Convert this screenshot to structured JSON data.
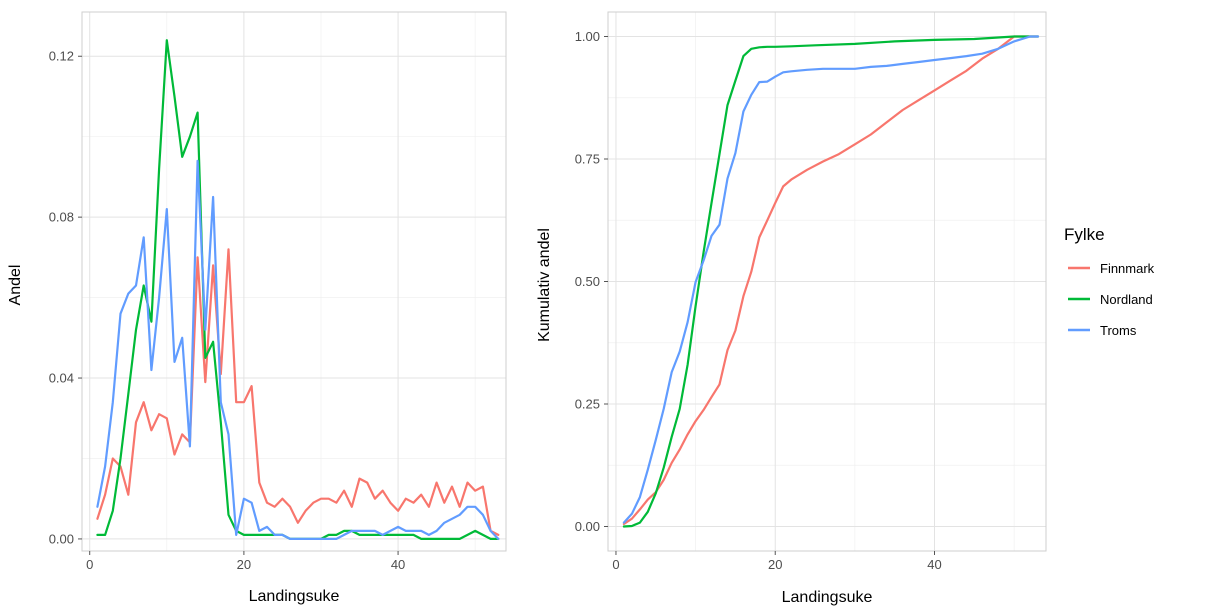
{
  "legend": {
    "title": "Fylke",
    "position": "right",
    "entries": [
      {
        "label": "Finnmark",
        "color": "#F8766D"
      },
      {
        "label": "Nordland",
        "color": "#00BA38"
      },
      {
        "label": "Troms",
        "color": "#619CFF"
      }
    ]
  },
  "chart_data": [
    {
      "type": "line",
      "xlabel": "Landingsuke",
      "ylabel": "Andel",
      "xlim": [
        -1,
        54
      ],
      "ylim": [
        -0.003,
        0.131
      ],
      "xticks": [
        0,
        20,
        40
      ],
      "xtick_labels": [
        "0",
        "20",
        "40"
      ],
      "yticks": [
        0,
        0.04,
        0.08,
        0.12
      ],
      "ytick_labels": [
        "0.00",
        "0.04",
        "0.08",
        "0.12"
      ],
      "grid": true,
      "series": [
        {
          "name": "Finnmark",
          "color": "#F8766D",
          "x": [
            1,
            2,
            3,
            4,
            5,
            6,
            7,
            8,
            9,
            10,
            11,
            12,
            13,
            14,
            15,
            16,
            17,
            18,
            19,
            20,
            21,
            22,
            23,
            24,
            25,
            26,
            27,
            28,
            29,
            30,
            31,
            32,
            33,
            34,
            35,
            36,
            37,
            38,
            39,
            40,
            41,
            42,
            43,
            44,
            45,
            46,
            47,
            48,
            49,
            50,
            51,
            52,
            53
          ],
          "y": [
            0.005,
            0.011,
            0.02,
            0.018,
            0.011,
            0.029,
            0.034,
            0.027,
            0.031,
            0.03,
            0.021,
            0.026,
            0.024,
            0.07,
            0.039,
            0.068,
            0.041,
            0.072,
            0.034,
            0.034,
            0.038,
            0.014,
            0.009,
            0.008,
            0.01,
            0.008,
            0.004,
            0.007,
            0.009,
            0.01,
            0.01,
            0.009,
            0.012,
            0.008,
            0.015,
            0.014,
            0.01,
            0.012,
            0.009,
            0.007,
            0.01,
            0.009,
            0.011,
            0.008,
            0.014,
            0.009,
            0.013,
            0.008,
            0.014,
            0.012,
            0.013,
            0.002,
            0.001
          ]
        },
        {
          "name": "Nordland",
          "color": "#00BA38",
          "x": [
            1,
            2,
            3,
            4,
            5,
            6,
            7,
            8,
            9,
            10,
            11,
            12,
            13,
            14,
            15,
            16,
            17,
            18,
            19,
            20,
            21,
            22,
            23,
            24,
            25,
            26,
            27,
            28,
            29,
            30,
            31,
            32,
            33,
            34,
            35,
            36,
            37,
            38,
            39,
            40,
            41,
            42,
            43,
            44,
            45,
            46,
            47,
            48,
            49,
            50,
            51,
            52,
            53
          ],
          "y": [
            0.001,
            0.001,
            0.007,
            0.02,
            0.036,
            0.052,
            0.063,
            0.054,
            0.092,
            0.124,
            0.11,
            0.095,
            0.1,
            0.106,
            0.045,
            0.049,
            0.029,
            0.006,
            0.002,
            0.001,
            0.001,
            0.001,
            0.001,
            0.001,
            0.001,
            0.0,
            0.0,
            0.0,
            0.0,
            0.0,
            0.001,
            0.001,
            0.002,
            0.002,
            0.001,
            0.001,
            0.001,
            0.001,
            0.001,
            0.001,
            0.001,
            0.001,
            0.0,
            0.0,
            0.0,
            0.0,
            0.0,
            0.0,
            0.001,
            0.002,
            0.001,
            0.0,
            0.0
          ]
        },
        {
          "name": "Troms",
          "color": "#619CFF",
          "x": [
            1,
            2,
            3,
            4,
            5,
            6,
            7,
            8,
            9,
            10,
            11,
            12,
            13,
            14,
            15,
            16,
            17,
            18,
            19,
            20,
            21,
            22,
            23,
            24,
            25,
            26,
            27,
            28,
            29,
            30,
            31,
            32,
            33,
            34,
            35,
            36,
            37,
            38,
            39,
            40,
            41,
            42,
            43,
            44,
            45,
            46,
            47,
            48,
            49,
            50,
            51,
            52,
            53
          ],
          "y": [
            0.008,
            0.018,
            0.034,
            0.056,
            0.061,
            0.063,
            0.075,
            0.042,
            0.06,
            0.082,
            0.044,
            0.05,
            0.023,
            0.094,
            0.052,
            0.085,
            0.034,
            0.026,
            0.001,
            0.01,
            0.009,
            0.002,
            0.003,
            0.001,
            0.001,
            0.0,
            0.0,
            0.0,
            0.0,
            0.0,
            0.0,
            0.0,
            0.001,
            0.002,
            0.002,
            0.002,
            0.002,
            0.001,
            0.002,
            0.003,
            0.002,
            0.002,
            0.002,
            0.001,
            0.002,
            0.004,
            0.005,
            0.006,
            0.008,
            0.008,
            0.006,
            0.002,
            0.0
          ]
        }
      ]
    },
    {
      "type": "line",
      "xlabel": "Landingsuke",
      "ylabel": "Kumulativ andel",
      "xlim": [
        -1,
        54
      ],
      "ylim": [
        -0.05,
        1.05
      ],
      "xticks": [
        0,
        20,
        40
      ],
      "xtick_labels": [
        "0",
        "20",
        "40"
      ],
      "yticks": [
        0,
        0.25,
        0.5,
        0.75,
        1.0
      ],
      "ytick_labels": [
        "0.00",
        "0.25",
        "0.50",
        "0.75",
        "1.00"
      ],
      "grid": true,
      "series": [
        {
          "name": "Finnmark",
          "color": "#F8766D",
          "x": [
            1,
            2,
            3,
            4,
            5,
            6,
            7,
            8,
            9,
            10,
            11,
            12,
            13,
            14,
            15,
            16,
            17,
            18,
            19,
            20,
            21,
            22,
            24,
            26,
            28,
            30,
            32,
            34,
            36,
            38,
            40,
            42,
            44,
            46,
            48,
            50,
            52,
            53
          ],
          "y": [
            0.005,
            0.016,
            0.035,
            0.055,
            0.07,
            0.095,
            0.13,
            0.157,
            0.188,
            0.215,
            0.238,
            0.264,
            0.29,
            0.36,
            0.4,
            0.47,
            0.52,
            0.59,
            0.625,
            0.66,
            0.694,
            0.708,
            0.728,
            0.745,
            0.76,
            0.78,
            0.8,
            0.825,
            0.85,
            0.87,
            0.89,
            0.91,
            0.93,
            0.955,
            0.975,
            1.0,
            1.0,
            1.0
          ]
        },
        {
          "name": "Nordland",
          "color": "#00BA38",
          "x": [
            1,
            2,
            3,
            4,
            5,
            6,
            7,
            8,
            9,
            10,
            11,
            12,
            13,
            14,
            15,
            16,
            17,
            18,
            19,
            20,
            22,
            25,
            30,
            35,
            40,
            45,
            50,
            52,
            53
          ],
          "y": [
            0.0,
            0.001,
            0.008,
            0.03,
            0.068,
            0.12,
            0.183,
            0.24,
            0.33,
            0.45,
            0.56,
            0.66,
            0.76,
            0.86,
            0.91,
            0.96,
            0.975,
            0.978,
            0.979,
            0.979,
            0.98,
            0.982,
            0.985,
            0.99,
            0.993,
            0.995,
            1.0,
            1.0,
            1.0
          ]
        },
        {
          "name": "Troms",
          "color": "#619CFF",
          "x": [
            1,
            2,
            3,
            4,
            5,
            6,
            7,
            8,
            9,
            10,
            11,
            12,
            13,
            14,
            15,
            16,
            17,
            18,
            19,
            20,
            21,
            22,
            24,
            26,
            28,
            30,
            32,
            34,
            36,
            38,
            40,
            42,
            44,
            46,
            48,
            50,
            52,
            53
          ],
          "y": [
            0.008,
            0.026,
            0.06,
            0.116,
            0.177,
            0.24,
            0.315,
            0.357,
            0.417,
            0.499,
            0.543,
            0.593,
            0.616,
            0.71,
            0.762,
            0.847,
            0.881,
            0.907,
            0.908,
            0.918,
            0.927,
            0.929,
            0.932,
            0.934,
            0.934,
            0.934,
            0.938,
            0.94,
            0.944,
            0.948,
            0.952,
            0.956,
            0.96,
            0.965,
            0.975,
            0.99,
            1.0,
            1.0
          ]
        }
      ]
    }
  ]
}
